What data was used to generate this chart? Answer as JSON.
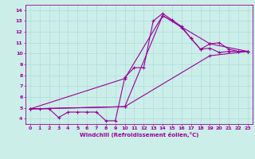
{
  "xlabel": "Windchill (Refroidissement éolien,°C)",
  "bg_color": "#cceee8",
  "line_color": "#990099",
  "grid_color": "#aadddd",
  "xlim": [
    -0.5,
    23.5
  ],
  "ylim": [
    3.5,
    14.5
  ],
  "xticks": [
    0,
    1,
    2,
    3,
    4,
    5,
    6,
    7,
    8,
    9,
    10,
    11,
    12,
    13,
    14,
    15,
    16,
    17,
    18,
    19,
    20,
    21,
    22,
    23
  ],
  "yticks": [
    4,
    5,
    6,
    7,
    8,
    9,
    10,
    11,
    12,
    13,
    14
  ],
  "series": [
    [
      [
        0,
        4.9
      ],
      [
        1,
        4.9
      ],
      [
        2,
        4.9
      ],
      [
        3,
        4.1
      ],
      [
        4,
        4.6
      ],
      [
        5,
        4.6
      ],
      [
        6,
        4.6
      ],
      [
        7,
        4.6
      ],
      [
        8,
        3.8
      ],
      [
        9,
        3.8
      ],
      [
        10,
        7.8
      ],
      [
        11,
        8.7
      ],
      [
        12,
        8.7
      ],
      [
        13,
        13.0
      ],
      [
        14,
        13.7
      ],
      [
        15,
        13.1
      ],
      [
        16,
        12.5
      ],
      [
        17,
        11.4
      ],
      [
        18,
        10.4
      ],
      [
        19,
        10.5
      ],
      [
        20,
        10.1
      ],
      [
        21,
        10.2
      ],
      [
        22,
        10.2
      ],
      [
        23,
        10.2
      ]
    ],
    [
      [
        0,
        4.9
      ],
      [
        10,
        7.7
      ],
      [
        14,
        13.5
      ],
      [
        15,
        13.0
      ],
      [
        16,
        12.4
      ],
      [
        17,
        11.4
      ],
      [
        18,
        10.4
      ],
      [
        19,
        10.9
      ],
      [
        20,
        11.0
      ],
      [
        21,
        10.4
      ],
      [
        22,
        10.2
      ],
      [
        23,
        10.2
      ]
    ],
    [
      [
        0,
        4.9
      ],
      [
        10,
        5.1
      ],
      [
        14,
        13.5
      ],
      [
        19,
        10.9
      ],
      [
        23,
        10.2
      ]
    ],
    [
      [
        0,
        4.9
      ],
      [
        10,
        5.1
      ],
      [
        19,
        9.8
      ],
      [
        23,
        10.2
      ]
    ]
  ]
}
